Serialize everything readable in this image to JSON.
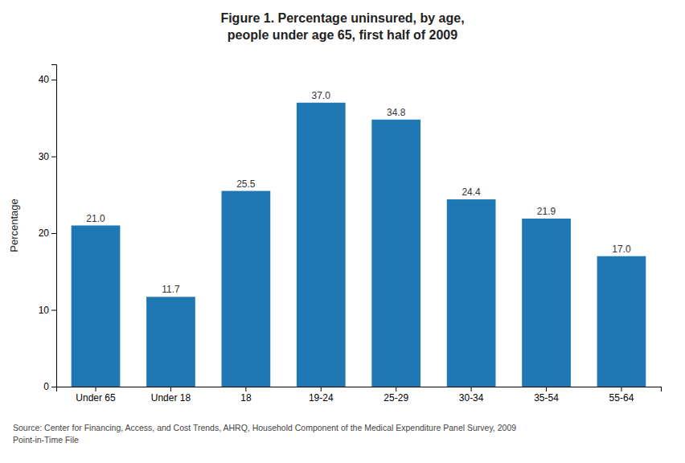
{
  "chart_data": {
    "type": "bar",
    "title": "Figure 1. Percentage uninsured, by age,\npeople under age 65, first half of 2009",
    "ylabel": "Percentage",
    "categories": [
      "Under 65",
      "Under 18",
      "18",
      "19-24",
      "25-29",
      "30-34",
      "35-54",
      "55-64"
    ],
    "values": [
      21.0,
      11.7,
      25.5,
      37.0,
      34.8,
      24.4,
      21.9,
      17.0
    ],
    "value_labels": [
      "21.0",
      "11.7",
      "25.5",
      "37.0",
      "34.8",
      "24.4",
      "21.9",
      "17.0"
    ],
    "data_labels": true,
    "ylim": [
      0,
      42
    ],
    "yticks": [
      0,
      10,
      20,
      30,
      40
    ],
    "grid": false,
    "annotations": [
      "Source: Center for Financing, Access, and Cost Trends, AHRQ, Household Component of the Medical Expenditure Panel Survey, 2009\nPoint-in-Time File"
    ]
  }
}
